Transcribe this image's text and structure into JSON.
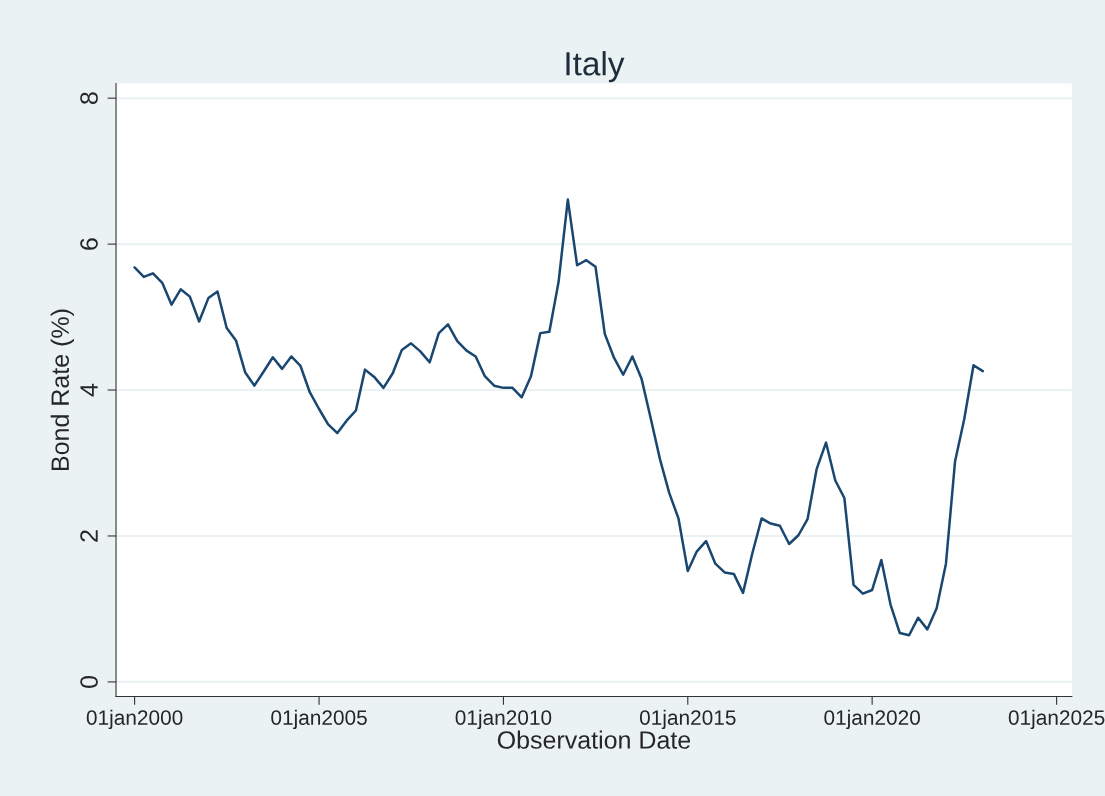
{
  "chart_data": {
    "type": "line",
    "title": "Italy",
    "xlabel": "Observation Date",
    "ylabel": "Bond Rate (%)",
    "x": [
      "2000-01",
      "2000-04",
      "2000-07",
      "2000-10",
      "2001-01",
      "2001-04",
      "2001-07",
      "2001-10",
      "2002-01",
      "2002-04",
      "2002-07",
      "2002-10",
      "2003-01",
      "2003-04",
      "2003-07",
      "2003-10",
      "2004-01",
      "2004-04",
      "2004-07",
      "2004-10",
      "2005-01",
      "2005-04",
      "2005-07",
      "2005-10",
      "2006-01",
      "2006-04",
      "2006-07",
      "2006-10",
      "2007-01",
      "2007-04",
      "2007-07",
      "2007-10",
      "2008-01",
      "2008-04",
      "2008-07",
      "2008-10",
      "2009-01",
      "2009-04",
      "2009-07",
      "2009-10",
      "2010-01",
      "2010-04",
      "2010-07",
      "2010-10",
      "2011-01",
      "2011-04",
      "2011-07",
      "2011-10",
      "2012-01",
      "2012-04",
      "2012-07",
      "2012-10",
      "2013-01",
      "2013-04",
      "2013-07",
      "2013-10",
      "2014-01",
      "2014-04",
      "2014-07",
      "2014-10",
      "2015-01",
      "2015-04",
      "2015-07",
      "2015-10",
      "2016-01",
      "2016-04",
      "2016-07",
      "2016-10",
      "2017-01",
      "2017-04",
      "2017-07",
      "2017-10",
      "2018-01",
      "2018-04",
      "2018-07",
      "2018-10",
      "2019-01",
      "2019-04",
      "2019-07",
      "2019-10",
      "2020-01",
      "2020-04",
      "2020-07",
      "2020-10",
      "2021-01",
      "2021-04",
      "2021-07",
      "2021-10",
      "2022-01",
      "2022-04",
      "2022-07",
      "2022-10",
      "2023-01"
    ],
    "series": [
      {
        "color": "#1a476f",
        "values": [
          5.68,
          5.55,
          5.6,
          5.47,
          5.17,
          5.38,
          5.28,
          4.94,
          5.26,
          5.35,
          4.85,
          4.68,
          4.24,
          4.06,
          4.25,
          4.45,
          4.29,
          4.46,
          4.33,
          3.97,
          3.74,
          3.53,
          3.41,
          3.58,
          3.72,
          4.28,
          4.18,
          4.03,
          4.23,
          4.55,
          4.64,
          4.53,
          4.38,
          4.78,
          4.9,
          4.67,
          4.54,
          4.46,
          4.19,
          4.06,
          4.03,
          4.03,
          3.9,
          4.19,
          4.78,
          4.8,
          5.48,
          6.61,
          5.71,
          5.78,
          5.69,
          4.77,
          4.44,
          4.21,
          4.46,
          4.15,
          3.6,
          3.05,
          2.59,
          2.24,
          1.52,
          1.79,
          1.93,
          1.62,
          1.5,
          1.48,
          1.22,
          1.76,
          2.24,
          2.17,
          2.14,
          1.89,
          2.01,
          2.23,
          2.92,
          3.28,
          2.76,
          2.52,
          1.33,
          1.21,
          1.26,
          1.67,
          1.06,
          0.67,
          0.64,
          0.88,
          0.72,
          1.01,
          1.62,
          3.02,
          3.6,
          4.34,
          4.26
        ]
      }
    ],
    "xlim": [
      "1999-07",
      "2025-06"
    ],
    "xticks": [
      {
        "value": "2000-01-01",
        "label": "01jan2000"
      },
      {
        "value": "2005-01-01",
        "label": "01jan2005"
      },
      {
        "value": "2010-01-01",
        "label": "01jan2010"
      },
      {
        "value": "2015-01-01",
        "label": "01jan2015"
      },
      {
        "value": "2020-01-01",
        "label": "01jan2020"
      },
      {
        "value": "2025-01-01",
        "label": "01jan2025"
      }
    ],
    "ylim": [
      -0.2,
      8.2
    ],
    "yticks": [
      0,
      2,
      4,
      6,
      8
    ],
    "grid": "y",
    "legend": false,
    "marker": "none",
    "line_style": "solid"
  }
}
